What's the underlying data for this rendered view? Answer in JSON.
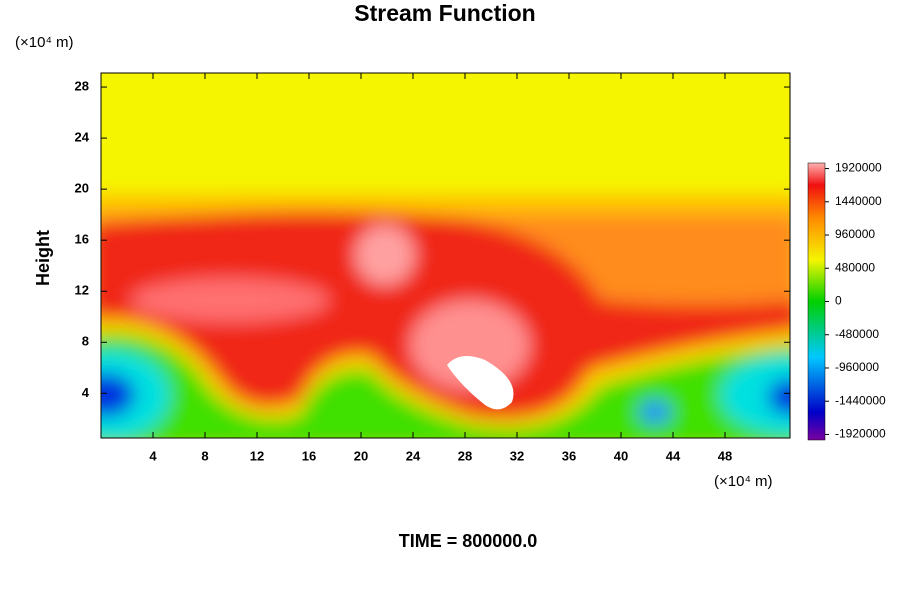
{
  "chart_data": {
    "type": "contour",
    "title": "Stream Function",
    "y_label": "Height",
    "x_unit": "(×10⁴ m)",
    "y_unit": "(×10⁴ m)",
    "annotation": "TIME = 800000.0",
    "xlim": [
      0,
      53
    ],
    "xticks": [
      4,
      8,
      12,
      16,
      20,
      24,
      28,
      32,
      36,
      40,
      44,
      48
    ],
    "ylim": [
      0.5,
      29.1
    ],
    "yticks": [
      4,
      8,
      12,
      16,
      20,
      24,
      28
    ],
    "colorbar": {
      "clim": [
        -2000000,
        2000000
      ],
      "ticks": [
        1920000,
        1440000,
        960000,
        480000,
        0,
        -480000,
        -960000,
        -1440000,
        -1920000
      ]
    }
  }
}
